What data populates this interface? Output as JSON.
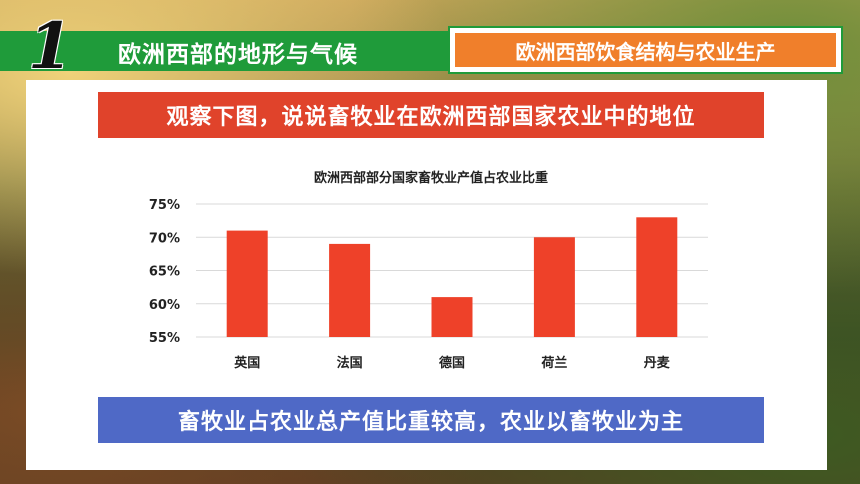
{
  "header": {
    "number": "1",
    "title": "欧洲西部的地形与气候",
    "tab_label": "欧洲西部饮食结构与农业生产"
  },
  "question_banner": "观察下图，说说畜牧业在欧洲西部国家农业中的地位",
  "conclusion_banner": "畜牧业占农业总产值比重较高，农业以畜牧业为主",
  "colors": {
    "header_green": "#1f9b3a",
    "tab_orange": "#f07f2b",
    "bar_red": "#ee4129",
    "banner_red": "#e0432b",
    "banner_blue": "#4f69c6"
  },
  "chart_data": {
    "type": "bar",
    "title": "欧洲西部部分国家畜牧业产值占农业比重",
    "categories": [
      "英国",
      "法国",
      "德国",
      "荷兰",
      "丹麦"
    ],
    "values": [
      71,
      69,
      61,
      70,
      73
    ],
    "ylim": [
      55,
      75
    ],
    "yticks": [
      55,
      60,
      65,
      70,
      75
    ],
    "ytick_labels": [
      "55%",
      "60%",
      "65%",
      "70%",
      "75%"
    ],
    "xlabel": "",
    "ylabel": "",
    "grid": true,
    "legend": "none"
  }
}
